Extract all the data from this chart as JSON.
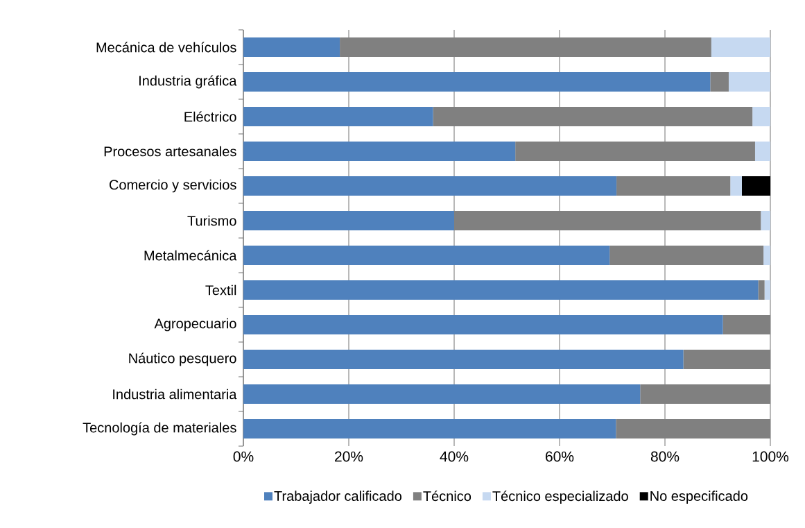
{
  "chart_data": {
    "type": "bar",
    "orientation": "horizontal",
    "stacked": true,
    "categories": [
      "Mecánica de vehículos",
      "Industria gráfica",
      "Eléctrico",
      "Procesos artesanales",
      "Comercio y servicios",
      "Turismo",
      "Metalmecánica",
      "Textil",
      "Agropecuario",
      "Náutico pesquero",
      "Industria alimentaria",
      "Tecnología de materiales"
    ],
    "series": [
      {
        "name": "Trabajador calificado",
        "color": "#4f81bd",
        "values": [
          18.3,
          88.6,
          36.0,
          51.6,
          70.8,
          40.0,
          69.5,
          97.7,
          91.0,
          83.5,
          75.3,
          70.7
        ]
      },
      {
        "name": "Técnico",
        "color": "#808080",
        "values": [
          70.5,
          3.5,
          60.6,
          45.5,
          21.6,
          58.2,
          29.2,
          1.2,
          9.0,
          16.5,
          24.7,
          29.3
        ]
      },
      {
        "name": "Técnico especializado",
        "color": "#c6d9f1",
        "values": [
          11.2,
          7.9,
          3.4,
          2.9,
          2.2,
          1.8,
          1.3,
          1.1,
          0,
          0,
          0,
          0
        ]
      },
      {
        "name": "No especificado",
        "color": "#000000",
        "values": [
          0,
          0,
          0,
          0,
          5.4,
          0,
          0,
          0,
          0,
          0,
          0,
          0
        ]
      }
    ],
    "xlim": [
      0,
      100
    ],
    "xticks": [
      {
        "value": 0,
        "label": "0%"
      },
      {
        "value": 20,
        "label": "20%"
      },
      {
        "value": 40,
        "label": "40%"
      },
      {
        "value": 60,
        "label": "60%"
      },
      {
        "value": 80,
        "label": "80%"
      },
      {
        "value": 100,
        "label": "100%"
      }
    ],
    "grid": "x",
    "legend": "bottom"
  }
}
